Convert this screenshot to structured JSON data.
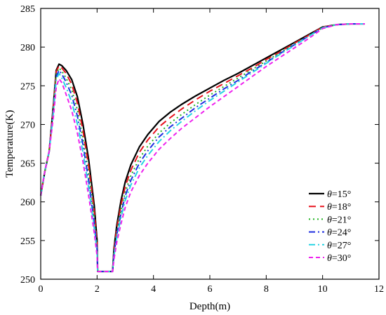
{
  "chart_data": {
    "type": "line",
    "title": "",
    "xlabel": "Depth(m)",
    "ylabel": "Temperature(K)",
    "xlim": [
      0,
      12
    ],
    "ylim": [
      250,
      285
    ],
    "xticks": [
      0,
      2,
      4,
      6,
      8,
      10,
      12
    ],
    "yticks": [
      250,
      255,
      260,
      265,
      270,
      275,
      280,
      285
    ],
    "grid": false,
    "legend_position": "lower-right",
    "series": [
      {
        "name": "θ=15°",
        "theta_symbol": "θ",
        "label_value": "=15°",
        "color": "#000000",
        "dash": "solid",
        "x": [
          0,
          0.15,
          0.3,
          0.45,
          0.55,
          0.65,
          0.75,
          0.9,
          1.1,
          1.3,
          1.5,
          1.7,
          1.9,
          2.0,
          2.02,
          2.25,
          2.55,
          2.6,
          2.7,
          2.85,
          3.0,
          3.2,
          3.5,
          3.8,
          4.2,
          4.6,
          5.0,
          5.5,
          6.0,
          6.5,
          7.0,
          7.5,
          8.0,
          8.5,
          9.0,
          9.5,
          10.0,
          10.5,
          11.0,
          11.5
        ],
        "y": [
          260.8,
          264.0,
          266.5,
          272.5,
          277.0,
          277.8,
          277.6,
          277.0,
          275.8,
          273.6,
          270.0,
          265.5,
          259.5,
          255.0,
          251.0,
          251.0,
          251.0,
          254.0,
          257.0,
          260.2,
          262.6,
          264.8,
          267.1,
          268.7,
          270.4,
          271.6,
          272.6,
          273.7,
          274.7,
          275.7,
          276.6,
          277.6,
          278.6,
          279.6,
          280.6,
          281.6,
          282.6,
          282.9,
          283.0,
          283.0
        ]
      },
      {
        "name": "θ=18°",
        "theta_symbol": "θ",
        "label_value": "=18°",
        "color": "#e8141e",
        "dash": "long-dash",
        "x": [
          0,
          0.15,
          0.3,
          0.45,
          0.55,
          0.65,
          0.75,
          0.9,
          1.1,
          1.3,
          1.5,
          1.7,
          1.9,
          2.0,
          2.02,
          2.25,
          2.55,
          2.6,
          2.7,
          2.85,
          3.0,
          3.2,
          3.5,
          3.8,
          4.2,
          4.6,
          5.0,
          5.5,
          6.0,
          6.5,
          7.0,
          7.5,
          8.0,
          8.5,
          9.0,
          9.5,
          10.0,
          10.5,
          11.0,
          11.5
        ],
        "y": [
          260.8,
          264.0,
          266.5,
          272.3,
          276.8,
          277.6,
          277.3,
          276.6,
          275.2,
          272.8,
          269.2,
          264.6,
          258.8,
          254.6,
          251.0,
          251.0,
          251.0,
          253.8,
          256.6,
          259.6,
          262.0,
          264.1,
          266.4,
          268.0,
          269.7,
          270.9,
          272.0,
          273.2,
          274.3,
          275.3,
          276.3,
          277.3,
          278.4,
          279.4,
          280.5,
          281.5,
          282.6,
          282.9,
          283.0,
          283.0
        ]
      },
      {
        "name": "θ=21°",
        "theta_symbol": "θ",
        "label_value": "=21°",
        "color": "#22b322",
        "dash": "dotted",
        "x": [
          0,
          0.15,
          0.3,
          0.45,
          0.55,
          0.65,
          0.75,
          0.9,
          1.1,
          1.3,
          1.5,
          1.7,
          1.9,
          2.0,
          2.02,
          2.25,
          2.55,
          2.6,
          2.7,
          2.85,
          3.0,
          3.2,
          3.5,
          3.8,
          4.2,
          4.6,
          5.0,
          5.5,
          6.0,
          6.5,
          7.0,
          7.5,
          8.0,
          8.5,
          9.0,
          9.5,
          10.0,
          10.5,
          11.0,
          11.5
        ],
        "y": [
          260.8,
          264.0,
          266.5,
          272.1,
          276.5,
          277.3,
          276.9,
          276.0,
          274.5,
          271.9,
          268.2,
          263.6,
          258.0,
          254.2,
          251.0,
          251.0,
          251.0,
          253.5,
          256.2,
          259.0,
          261.3,
          263.4,
          265.6,
          267.2,
          268.9,
          270.2,
          271.3,
          272.6,
          273.8,
          274.9,
          276.0,
          277.1,
          278.2,
          279.3,
          280.4,
          281.4,
          282.5,
          282.9,
          283.0,
          283.0
        ]
      },
      {
        "name": "θ=24°",
        "theta_symbol": "θ",
        "label_value": "=24°",
        "color": "#1f2fe0",
        "dash": "dash-dot",
        "x": [
          0,
          0.15,
          0.3,
          0.45,
          0.55,
          0.65,
          0.75,
          0.9,
          1.1,
          1.3,
          1.5,
          1.7,
          1.9,
          2.0,
          2.02,
          2.25,
          2.55,
          2.6,
          2.7,
          2.85,
          3.0,
          3.2,
          3.5,
          3.8,
          4.2,
          4.6,
          5.0,
          5.5,
          6.0,
          6.5,
          7.0,
          7.5,
          8.0,
          8.5,
          9.0,
          9.5,
          10.0,
          10.5,
          11.0,
          11.5
        ],
        "y": [
          260.8,
          264.0,
          266.5,
          271.8,
          276.2,
          277.0,
          276.5,
          275.5,
          273.8,
          271.1,
          267.4,
          262.8,
          257.3,
          253.9,
          251.0,
          251.0,
          251.0,
          253.3,
          255.8,
          258.5,
          260.8,
          262.8,
          265.0,
          266.6,
          268.4,
          269.7,
          270.8,
          272.2,
          273.4,
          274.6,
          275.7,
          276.9,
          278.0,
          279.2,
          280.3,
          281.4,
          282.5,
          282.9,
          283.0,
          283.0
        ]
      },
      {
        "name": "θ=27°",
        "theta_symbol": "θ",
        "label_value": "=27°",
        "color": "#26d4e3",
        "dash": "dash-dot",
        "x": [
          0,
          0.15,
          0.3,
          0.45,
          0.55,
          0.65,
          0.75,
          0.9,
          1.1,
          1.3,
          1.5,
          1.7,
          1.9,
          2.0,
          2.02,
          2.25,
          2.55,
          2.6,
          2.7,
          2.85,
          3.0,
          3.2,
          3.5,
          3.8,
          4.2,
          4.6,
          5.0,
          5.5,
          6.0,
          6.5,
          7.0,
          7.5,
          8.0,
          8.5,
          9.0,
          9.5,
          10.0,
          10.5,
          11.0,
          11.5
        ],
        "y": [
          260.8,
          264.0,
          266.5,
          271.5,
          275.8,
          276.6,
          276.0,
          274.8,
          272.9,
          270.1,
          266.4,
          261.8,
          256.6,
          253.5,
          251.0,
          251.0,
          251.0,
          253.0,
          255.4,
          258.0,
          260.2,
          262.2,
          264.4,
          266.0,
          267.8,
          269.2,
          270.4,
          271.8,
          273.1,
          274.3,
          275.5,
          276.7,
          277.9,
          279.1,
          280.2,
          281.4,
          282.5,
          282.9,
          283.0,
          283.0
        ]
      },
      {
        "name": "θ=30°",
        "theta_symbol": "θ",
        "label_value": "=30°",
        "color": "#ee22ee",
        "dash": "short-dash",
        "x": [
          0,
          0.15,
          0.3,
          0.45,
          0.55,
          0.65,
          0.75,
          0.9,
          1.1,
          1.3,
          1.5,
          1.7,
          1.9,
          2.0,
          2.02,
          2.25,
          2.55,
          2.6,
          2.7,
          2.85,
          3.0,
          3.2,
          3.5,
          3.8,
          4.2,
          4.6,
          5.0,
          5.5,
          6.0,
          6.5,
          7.0,
          7.5,
          8.0,
          8.5,
          9.0,
          9.5,
          10.0,
          10.5,
          11.0,
          11.5
        ],
        "y": [
          260.8,
          264.0,
          266.5,
          271.0,
          274.8,
          275.9,
          275.4,
          273.9,
          271.8,
          268.9,
          265.2,
          260.8,
          256.0,
          253.0,
          251.0,
          251.0,
          251.0,
          252.6,
          254.8,
          257.2,
          259.3,
          261.3,
          263.4,
          265.0,
          266.8,
          268.2,
          269.5,
          270.9,
          272.3,
          273.6,
          274.9,
          276.2,
          277.5,
          278.7,
          279.9,
          281.1,
          282.4,
          282.9,
          283.0,
          283.0
        ]
      }
    ]
  }
}
